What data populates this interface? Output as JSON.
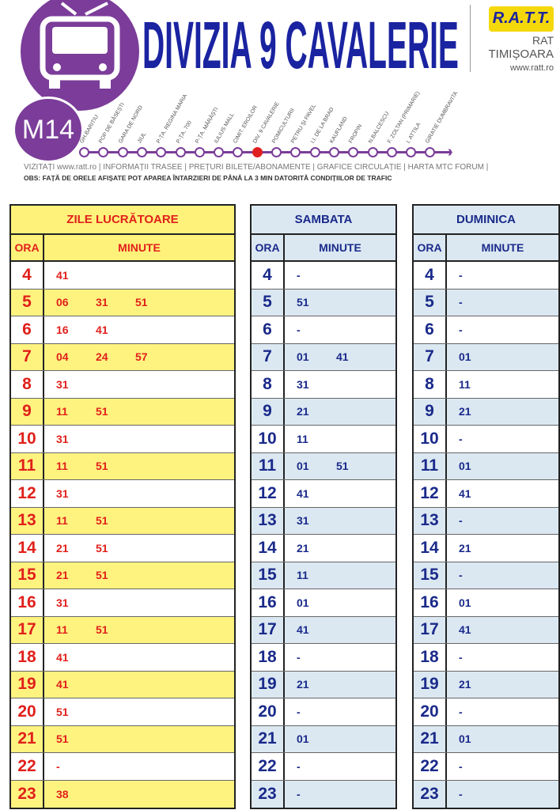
{
  "header": {
    "line": "M14",
    "title": "DIVIZIA 9 CAVALERIE",
    "logo_text": "R.A.T.T.",
    "org": "RAT",
    "city": "TIMIȘOARA",
    "website": "www.ratt.ro",
    "stops": [
      "GH.BARITIU",
      "POP DE BĂSEȘTI",
      "GARA DE NORD",
      "JIUL",
      "P-ȚA. REGINA MARIA",
      "P-ȚA. 700",
      "P-ȚA. MĂRĂȘTI",
      "IULIUS MALL",
      "CIMIT. EROILOR",
      "DIV. 9 CAVALERIE",
      "POMICULTURII",
      "PETRU ȘI PAVEL",
      "I.I. DE LA BRAD",
      "KAUFLAND",
      "FROPIN",
      "N.BALCESCU",
      "F. ZOLTAN (PRIMARIE)",
      "I. ATTILA",
      "GIRATIE DUMBRAVITA"
    ],
    "current_stop": "DIV. 9 CAVALERIE",
    "links": "VIZITAȚI www.ratt.ro | INFORMAȚII TRASEE | PREȚURI BILETE/ABONAMENTE | GRAFICE CIRCULAȚIE | HARTA MTC   FORUM |",
    "obs": "OBS: FAȚĂ DE ORELE AFIȘATE POT APAREA ÎNTARZIERI DE PÂNĂ LA 3 MIN DATORITĂ CONDIȚIILOR DE TRAFIC",
    "colors": {
      "purple": "#7b3d99",
      "title_blue": "#1a23a0",
      "current_stop": "#e02020"
    }
  },
  "col_hour": "ORA",
  "col_min": "MINUTE",
  "tables": [
    {
      "title": "ZILE LUCRĂTOARE",
      "rows": [
        [
          "4",
          [
            "41"
          ]
        ],
        [
          "5",
          [
            "06",
            "31",
            "51"
          ]
        ],
        [
          "6",
          [
            "16",
            "41"
          ]
        ],
        [
          "7",
          [
            "04",
            "24",
            "57"
          ]
        ],
        [
          "8",
          [
            "31"
          ]
        ],
        [
          "9",
          [
            "11",
            "51"
          ]
        ],
        [
          "10",
          [
            "31"
          ]
        ],
        [
          "11",
          [
            "11",
            "51"
          ]
        ],
        [
          "12",
          [
            "31"
          ]
        ],
        [
          "13",
          [
            "11",
            "51"
          ]
        ],
        [
          "14",
          [
            "21",
            "51"
          ]
        ],
        [
          "15",
          [
            "21",
            "51"
          ]
        ],
        [
          "16",
          [
            "31"
          ]
        ],
        [
          "17",
          [
            "11",
            "51"
          ]
        ],
        [
          "18",
          [
            "41"
          ]
        ],
        [
          "19",
          [
            "41"
          ]
        ],
        [
          "20",
          [
            "51"
          ]
        ],
        [
          "21",
          [
            "51"
          ]
        ],
        [
          "22",
          [
            "-"
          ]
        ],
        [
          "23",
          [
            "38"
          ]
        ]
      ]
    },
    {
      "title": "SAMBATA",
      "rows": [
        [
          "4",
          [
            "-"
          ]
        ],
        [
          "5",
          [
            "51"
          ]
        ],
        [
          "6",
          [
            "-"
          ]
        ],
        [
          "7",
          [
            "01",
            "41"
          ]
        ],
        [
          "8",
          [
            "31"
          ]
        ],
        [
          "9",
          [
            "21"
          ]
        ],
        [
          "10",
          [
            "11"
          ]
        ],
        [
          "11",
          [
            "01",
            "51"
          ]
        ],
        [
          "12",
          [
            "41"
          ]
        ],
        [
          "13",
          [
            "31"
          ]
        ],
        [
          "14",
          [
            "21"
          ]
        ],
        [
          "15",
          [
            "11"
          ]
        ],
        [
          "16",
          [
            "01"
          ]
        ],
        [
          "17",
          [
            "41"
          ]
        ],
        [
          "18",
          [
            "-"
          ]
        ],
        [
          "19",
          [
            "21"
          ]
        ],
        [
          "20",
          [
            "-"
          ]
        ],
        [
          "21",
          [
            "01"
          ]
        ],
        [
          "22",
          [
            "-"
          ]
        ],
        [
          "23",
          [
            "-"
          ]
        ]
      ]
    },
    {
      "title": "DUMINICA",
      "rows": [
        [
          "4",
          [
            "-"
          ]
        ],
        [
          "5",
          [
            "-"
          ]
        ],
        [
          "6",
          [
            "-"
          ]
        ],
        [
          "7",
          [
            "01"
          ]
        ],
        [
          "8",
          [
            "11"
          ]
        ],
        [
          "9",
          [
            "21"
          ]
        ],
        [
          "10",
          [
            "-"
          ]
        ],
        [
          "11",
          [
            "01"
          ]
        ],
        [
          "12",
          [
            "41"
          ]
        ],
        [
          "13",
          [
            "-"
          ]
        ],
        [
          "14",
          [
            "21"
          ]
        ],
        [
          "15",
          [
            "-"
          ]
        ],
        [
          "16",
          [
            "01"
          ]
        ],
        [
          "17",
          [
            "41"
          ]
        ],
        [
          "18",
          [
            "-"
          ]
        ],
        [
          "19",
          [
            "21"
          ]
        ],
        [
          "20",
          [
            "-"
          ]
        ],
        [
          "21",
          [
            "01"
          ]
        ],
        [
          "22",
          [
            "-"
          ]
        ],
        [
          "23",
          [
            "-"
          ]
        ]
      ]
    }
  ]
}
